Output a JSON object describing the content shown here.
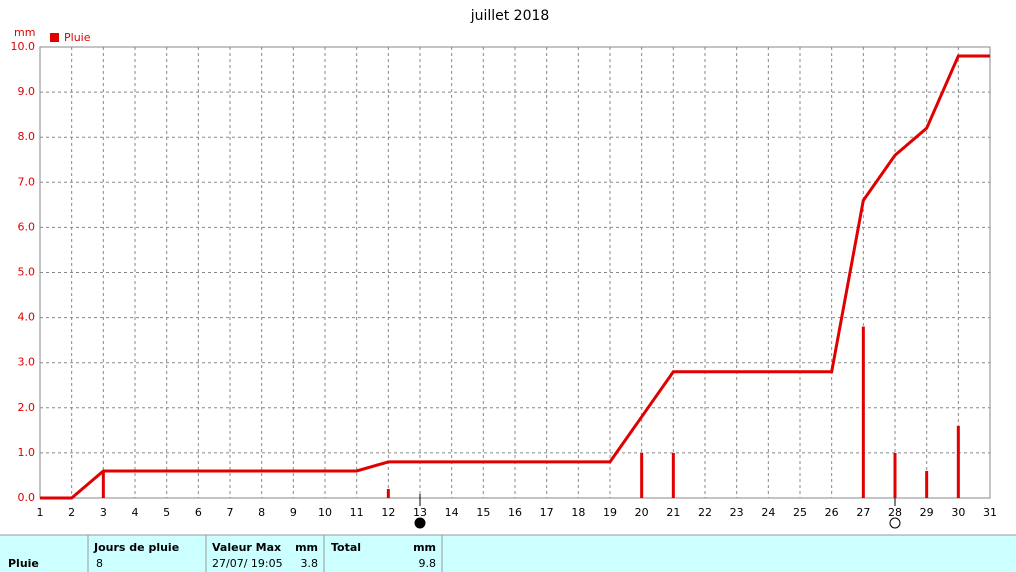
{
  "chart_data": {
    "type": "combo",
    "title": "juillet 2018",
    "y_label": "mm",
    "xlim": [
      1,
      31
    ],
    "xticks": [
      1,
      2,
      3,
      4,
      5,
      6,
      7,
      8,
      9,
      10,
      11,
      12,
      13,
      14,
      15,
      16,
      17,
      18,
      19,
      20,
      21,
      22,
      23,
      24,
      25,
      26,
      27,
      28,
      29,
      30,
      31
    ],
    "ylim": [
      0,
      10
    ],
    "yticks": [
      {
        "value": 0,
        "label": "0.0"
      },
      {
        "value": 1,
        "label": "1.0"
      },
      {
        "value": 2,
        "label": "2.0"
      },
      {
        "value": 3,
        "label": "3.0"
      },
      {
        "value": 4,
        "label": "4.0"
      },
      {
        "value": 5,
        "label": "5.0"
      },
      {
        "value": 6,
        "label": "6.0"
      },
      {
        "value": 7,
        "label": "7.0"
      },
      {
        "value": 8,
        "label": "8.0"
      },
      {
        "value": 9,
        "label": "9.0"
      },
      {
        "value": 10,
        "label": "10.0"
      }
    ],
    "grid": true,
    "series": [
      {
        "name": "Pluie",
        "type": "bar",
        "color": "#e00000",
        "x": [
          3,
          12,
          20,
          21,
          27,
          28,
          29,
          30
        ],
        "values": [
          0.6,
          0.2,
          1.0,
          1.0,
          3.8,
          1.0,
          0.6,
          1.6
        ]
      },
      {
        "type": "line",
        "color": "#e00000",
        "x": [
          1,
          2,
          3,
          4,
          5,
          6,
          7,
          8,
          9,
          10,
          11,
          12,
          13,
          14,
          15,
          16,
          17,
          18,
          19,
          20,
          21,
          22,
          23,
          24,
          25,
          26,
          27,
          28,
          29,
          30,
          31
        ],
        "values": [
          0,
          0,
          0.6,
          0.6,
          0.6,
          0.6,
          0.6,
          0.6,
          0.6,
          0.6,
          0.6,
          0.8,
          0.8,
          0.8,
          0.8,
          0.8,
          0.8,
          0.8,
          0.8,
          1.8,
          2.8,
          2.8,
          2.8,
          2.8,
          2.8,
          2.8,
          6.6,
          7.6,
          8.2,
          9.8,
          9.8
        ]
      }
    ],
    "moons": [
      {
        "x": 13,
        "filled": true
      },
      {
        "x": 28,
        "filled": false
      }
    ]
  },
  "table": {
    "header": [
      "Jours de pluie",
      "Valeur Max",
      "mm",
      "Total",
      "mm"
    ],
    "row": [
      "Pluie",
      "8",
      "27/07/ 19:05",
      "3.8",
      "9.8"
    ]
  }
}
